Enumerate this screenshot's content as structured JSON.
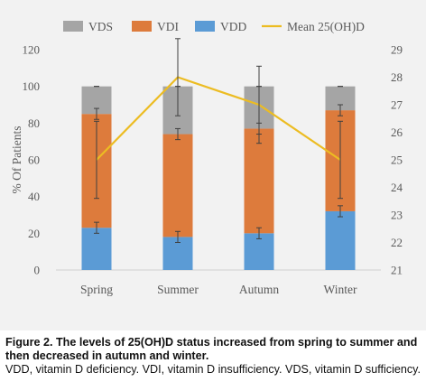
{
  "chart_data": {
    "type": "bar",
    "stacked": true,
    "categories": [
      "Spring",
      "Summer",
      "Autumn",
      "Winter"
    ],
    "series": [
      {
        "name": "VDD",
        "color": "#5b9bd5",
        "values": [
          23,
          18,
          20,
          32
        ],
        "error": [
          3,
          3,
          3,
          3
        ]
      },
      {
        "name": "VDI",
        "color": "#dd7b3c",
        "values": [
          62,
          56,
          57,
          55
        ],
        "error": [
          3,
          3,
          3,
          3
        ]
      },
      {
        "name": "VDS",
        "color": "#a5a5a5",
        "values": [
          15,
          26,
          23,
          13
        ],
        "error": [
          0,
          0,
          0,
          0
        ]
      }
    ],
    "line_series": {
      "name": "Mean 25(OH)D",
      "color": "#ecbc22",
      "axis": "right",
      "values": [
        25.0,
        28.0,
        27.0,
        25.0
      ],
      "error": [
        1.4,
        1.4,
        1.4,
        1.4
      ]
    },
    "xlabel": "",
    "ylabel": "% Of Patients",
    "ylim": [
      0,
      120
    ],
    "yticks": [
      "0",
      "20",
      "40",
      "60",
      "80",
      "100",
      "120"
    ],
    "y2lim": [
      21,
      29
    ],
    "y2ticks": [
      "21",
      "22",
      "23",
      "24",
      "25",
      "26",
      "27",
      "28",
      "29"
    ],
    "legend_position": "top",
    "legend": [
      "VDS",
      "VDI",
      "VDD",
      "Mean 25(OH)D"
    ],
    "grid": false
  },
  "caption": {
    "title": "Figure 2. The levels of 25(OH)D status increased from spring to summer and then decreased in autumn and winter.",
    "note": "VDD, vitamin D deficiency. VDI, vitamin D insufficiency. VDS, vitamin D sufficiency."
  }
}
